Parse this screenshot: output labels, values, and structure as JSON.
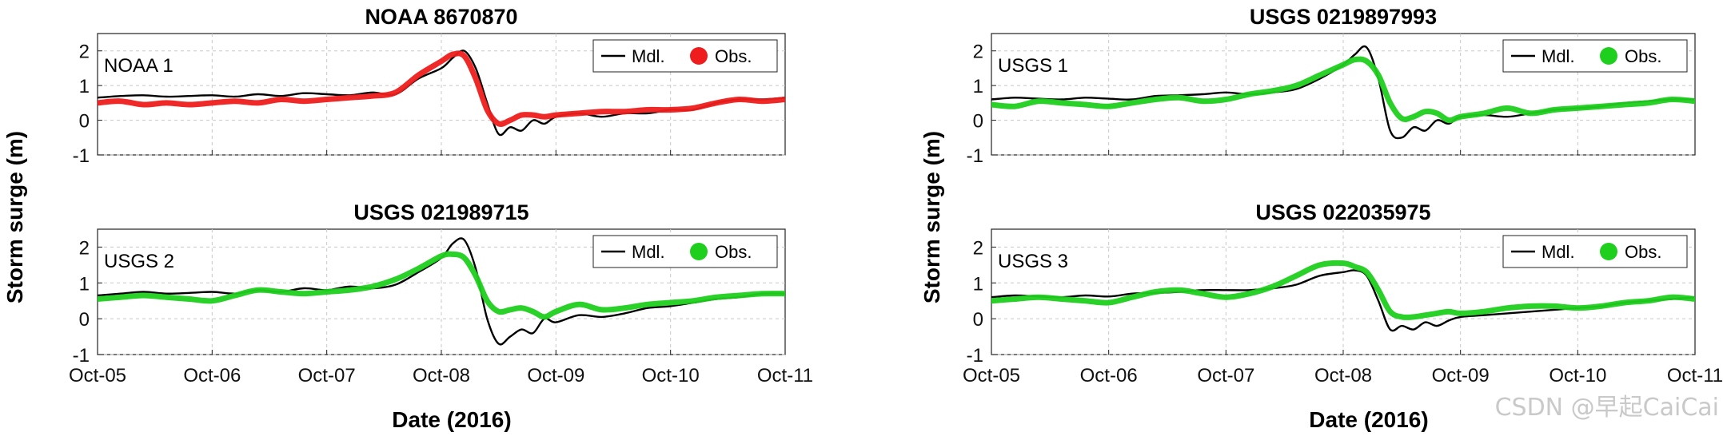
{
  "figure": {
    "ylabel": "Storm surge (m)",
    "xlabel": "Date (2016)",
    "watermark": "CSDN @早起CaiCai"
  },
  "legend": {
    "model": "Mdl.",
    "observed": "Obs."
  },
  "colors": {
    "model": "#000000",
    "obs_noaa": "#ee1c1c",
    "obs_usgs": "#1ecf1e",
    "grid": "#c8c8c8"
  },
  "chart_data": [
    {
      "type": "line",
      "title": "NOAA 8670870",
      "station_label": "NOAA 1",
      "x_ticks": [
        "Oct-05",
        "Oct-06",
        "Oct-07",
        "Oct-08",
        "Oct-09",
        "Oct-10",
        "Oct-11"
      ],
      "xlim": [
        0,
        6
      ],
      "y_ticks": [
        -1,
        0,
        1,
        2
      ],
      "ylim": [
        -1,
        2.5
      ],
      "grid": true,
      "legend_position": "top-right",
      "series": [
        {
          "name": "Mdl.",
          "x": [
            0,
            0.2,
            0.4,
            0.6,
            0.8,
            1.0,
            1.2,
            1.4,
            1.6,
            1.8,
            2.0,
            2.2,
            2.4,
            2.6,
            2.8,
            3.0,
            3.1,
            3.2,
            3.3,
            3.4,
            3.5,
            3.6,
            3.7,
            3.8,
            3.9,
            4.0,
            4.2,
            4.4,
            4.6,
            4.8,
            5.0,
            5.2,
            5.4,
            5.6,
            5.8,
            6.0
          ],
          "y": [
            0.65,
            0.7,
            0.72,
            0.68,
            0.7,
            0.72,
            0.68,
            0.75,
            0.7,
            0.78,
            0.75,
            0.72,
            0.8,
            0.75,
            1.2,
            1.5,
            1.8,
            2.0,
            1.5,
            0.5,
            -0.4,
            -0.2,
            -0.3,
            0.0,
            -0.1,
            0.1,
            0.2,
            0.1,
            0.2,
            0.2,
            0.3,
            0.3,
            0.5,
            0.6,
            0.6,
            0.65
          ]
        },
        {
          "name": "Obs.",
          "x": [
            0,
            0.2,
            0.4,
            0.6,
            0.8,
            1.0,
            1.2,
            1.4,
            1.6,
            1.8,
            2.0,
            2.2,
            2.4,
            2.6,
            2.8,
            3.0,
            3.1,
            3.2,
            3.3,
            3.4,
            3.5,
            3.6,
            3.7,
            3.8,
            3.9,
            4.0,
            4.2,
            4.4,
            4.6,
            4.8,
            5.0,
            5.2,
            5.4,
            5.6,
            5.8,
            6.0
          ],
          "y": [
            0.5,
            0.55,
            0.45,
            0.5,
            0.45,
            0.5,
            0.55,
            0.5,
            0.6,
            0.55,
            0.6,
            0.65,
            0.7,
            0.8,
            1.3,
            1.7,
            1.9,
            1.85,
            1.2,
            0.3,
            -0.1,
            0.0,
            0.15,
            0.15,
            0.1,
            0.15,
            0.2,
            0.25,
            0.25,
            0.3,
            0.3,
            0.35,
            0.5,
            0.6,
            0.55,
            0.6
          ]
        }
      ]
    },
    {
      "type": "line",
      "title": "USGS 0219897993",
      "station_label": "USGS 1",
      "x_ticks": [
        "Oct-05",
        "Oct-06",
        "Oct-07",
        "Oct-08",
        "Oct-09",
        "Oct-10",
        "Oct-11"
      ],
      "xlim": [
        0,
        6
      ],
      "y_ticks": [
        -1,
        0,
        1,
        2
      ],
      "ylim": [
        -1,
        2.5
      ],
      "grid": true,
      "legend_position": "top-right",
      "series": [
        {
          "name": "Mdl.",
          "x": [
            0,
            0.2,
            0.4,
            0.6,
            0.8,
            1.0,
            1.2,
            1.4,
            1.6,
            1.8,
            2.0,
            2.2,
            2.4,
            2.6,
            2.8,
            3.0,
            3.1,
            3.2,
            3.3,
            3.4,
            3.5,
            3.6,
            3.7,
            3.8,
            3.9,
            4.0,
            4.2,
            4.4,
            4.6,
            4.8,
            5.0,
            5.2,
            5.4,
            5.6,
            5.8,
            6.0
          ],
          "y": [
            0.6,
            0.65,
            0.62,
            0.6,
            0.65,
            0.62,
            0.6,
            0.7,
            0.72,
            0.75,
            0.8,
            0.75,
            0.8,
            0.9,
            1.2,
            1.6,
            1.9,
            2.1,
            1.2,
            -0.3,
            -0.5,
            -0.2,
            -0.3,
            0.0,
            -0.1,
            0.1,
            0.15,
            0.1,
            0.2,
            0.3,
            0.35,
            0.4,
            0.5,
            0.55,
            0.6,
            0.6
          ]
        },
        {
          "name": "Obs.",
          "x": [
            0,
            0.2,
            0.4,
            0.6,
            0.8,
            1.0,
            1.2,
            1.4,
            1.6,
            1.8,
            2.0,
            2.2,
            2.4,
            2.6,
            2.8,
            3.0,
            3.1,
            3.2,
            3.3,
            3.4,
            3.5,
            3.6,
            3.7,
            3.8,
            3.9,
            4.0,
            4.2,
            4.4,
            4.6,
            4.8,
            5.0,
            5.2,
            5.4,
            5.6,
            5.8,
            6.0
          ],
          "y": [
            0.45,
            0.4,
            0.55,
            0.5,
            0.45,
            0.4,
            0.5,
            0.6,
            0.65,
            0.55,
            0.6,
            0.75,
            0.85,
            1.0,
            1.3,
            1.6,
            1.75,
            1.7,
            1.3,
            0.5,
            0.05,
            0.1,
            0.25,
            0.2,
            0.0,
            0.1,
            0.2,
            0.35,
            0.2,
            0.3,
            0.35,
            0.4,
            0.45,
            0.5,
            0.6,
            0.55
          ]
        }
      ]
    },
    {
      "type": "line",
      "title": "USGS 021989715",
      "station_label": "USGS 2",
      "x_ticks": [
        "Oct-05",
        "Oct-06",
        "Oct-07",
        "Oct-08",
        "Oct-09",
        "Oct-10",
        "Oct-11"
      ],
      "xlim": [
        0,
        6
      ],
      "y_ticks": [
        -1,
        0,
        1,
        2
      ],
      "ylim": [
        -1,
        2.5
      ],
      "grid": true,
      "legend_position": "top-right",
      "series": [
        {
          "name": "Mdl.",
          "x": [
            0,
            0.2,
            0.4,
            0.6,
            0.8,
            1.0,
            1.2,
            1.4,
            1.6,
            1.8,
            2.0,
            2.2,
            2.4,
            2.6,
            2.8,
            3.0,
            3.1,
            3.2,
            3.3,
            3.4,
            3.5,
            3.6,
            3.7,
            3.8,
            3.9,
            4.0,
            4.2,
            4.4,
            4.6,
            4.8,
            5.0,
            5.2,
            5.4,
            5.6,
            5.8,
            6.0
          ],
          "y": [
            0.65,
            0.7,
            0.75,
            0.7,
            0.72,
            0.75,
            0.7,
            0.8,
            0.75,
            0.85,
            0.8,
            0.9,
            0.85,
            0.95,
            1.3,
            1.7,
            2.1,
            2.2,
            1.4,
            0.0,
            -0.7,
            -0.5,
            -0.3,
            -0.4,
            0.0,
            -0.1,
            0.1,
            0.05,
            0.15,
            0.3,
            0.35,
            0.45,
            0.55,
            0.6,
            0.7,
            0.7
          ]
        },
        {
          "name": "Obs.",
          "x": [
            0,
            0.2,
            0.4,
            0.6,
            0.8,
            1.0,
            1.2,
            1.4,
            1.6,
            1.8,
            2.0,
            2.2,
            2.4,
            2.6,
            2.8,
            3.0,
            3.1,
            3.2,
            3.3,
            3.4,
            3.5,
            3.6,
            3.7,
            3.8,
            3.9,
            4.0,
            4.2,
            4.4,
            4.6,
            4.8,
            5.0,
            5.2,
            5.4,
            5.6,
            5.8,
            6.0
          ],
          "y": [
            0.55,
            0.6,
            0.65,
            0.6,
            0.55,
            0.5,
            0.65,
            0.8,
            0.75,
            0.7,
            0.75,
            0.8,
            0.9,
            1.1,
            1.4,
            1.75,
            1.8,
            1.7,
            1.2,
            0.5,
            0.2,
            0.25,
            0.3,
            0.2,
            0.05,
            0.2,
            0.4,
            0.25,
            0.3,
            0.4,
            0.45,
            0.5,
            0.6,
            0.65,
            0.7,
            0.7
          ]
        }
      ]
    },
    {
      "type": "line",
      "title": "USGS 022035975",
      "station_label": "USGS 3",
      "x_ticks": [
        "Oct-05",
        "Oct-06",
        "Oct-07",
        "Oct-08",
        "Oct-09",
        "Oct-10",
        "Oct-11"
      ],
      "xlim": [
        0,
        6
      ],
      "y_ticks": [
        -1,
        0,
        1,
        2
      ],
      "ylim": [
        -1,
        2.5
      ],
      "grid": true,
      "legend_position": "top-right",
      "series": [
        {
          "name": "Mdl.",
          "x": [
            0,
            0.2,
            0.4,
            0.6,
            0.8,
            1.0,
            1.2,
            1.4,
            1.6,
            1.8,
            2.0,
            2.2,
            2.4,
            2.6,
            2.8,
            3.0,
            3.1,
            3.2,
            3.3,
            3.4,
            3.5,
            3.6,
            3.7,
            3.8,
            3.9,
            4.0,
            4.2,
            4.4,
            4.6,
            4.8,
            5.0,
            5.2,
            5.4,
            5.6,
            5.8,
            6.0
          ],
          "y": [
            0.6,
            0.65,
            0.62,
            0.6,
            0.65,
            0.62,
            0.7,
            0.72,
            0.75,
            0.8,
            0.8,
            0.8,
            0.85,
            0.95,
            1.2,
            1.3,
            1.35,
            1.2,
            0.5,
            -0.3,
            -0.2,
            -0.3,
            -0.1,
            -0.2,
            -0.05,
            0.05,
            0.1,
            0.15,
            0.2,
            0.25,
            0.3,
            0.35,
            0.45,
            0.5,
            0.55,
            0.6
          ]
        },
        {
          "name": "Obs.",
          "x": [
            0,
            0.2,
            0.4,
            0.6,
            0.8,
            1.0,
            1.2,
            1.4,
            1.6,
            1.8,
            2.0,
            2.2,
            2.4,
            2.6,
            2.8,
            3.0,
            3.1,
            3.2,
            3.3,
            3.4,
            3.5,
            3.6,
            3.7,
            3.8,
            3.9,
            4.0,
            4.2,
            4.4,
            4.6,
            4.8,
            5.0,
            5.2,
            5.4,
            5.6,
            5.8,
            6.0
          ],
          "y": [
            0.5,
            0.55,
            0.6,
            0.55,
            0.5,
            0.45,
            0.6,
            0.75,
            0.8,
            0.7,
            0.6,
            0.7,
            0.9,
            1.2,
            1.5,
            1.55,
            1.45,
            1.3,
            0.8,
            0.2,
            0.05,
            0.05,
            0.1,
            0.15,
            0.2,
            0.15,
            0.2,
            0.3,
            0.35,
            0.35,
            0.3,
            0.35,
            0.45,
            0.5,
            0.6,
            0.55
          ]
        }
      ]
    }
  ]
}
